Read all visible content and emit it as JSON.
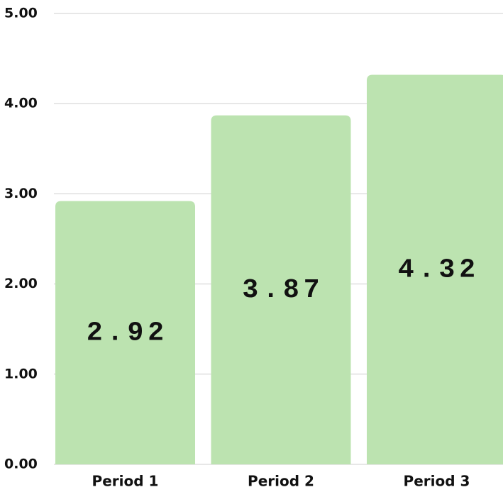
{
  "chart_data": {
    "type": "bar",
    "categories": [
      "Period 1",
      "Period 2",
      "Period 3"
    ],
    "values": [
      2.92,
      3.87,
      4.32
    ],
    "color": "#bce3b0",
    "ylim": [
      0,
      5
    ],
    "yticks": [
      {
        "value": 0,
        "label": "0.00"
      },
      {
        "value": 1,
        "label": "1.00"
      },
      {
        "value": 2,
        "label": "2.00"
      },
      {
        "value": 3,
        "label": "3.00"
      },
      {
        "value": 4,
        "label": "4.00"
      },
      {
        "value": 5,
        "label": "5.00"
      }
    ],
    "grid": true
  }
}
